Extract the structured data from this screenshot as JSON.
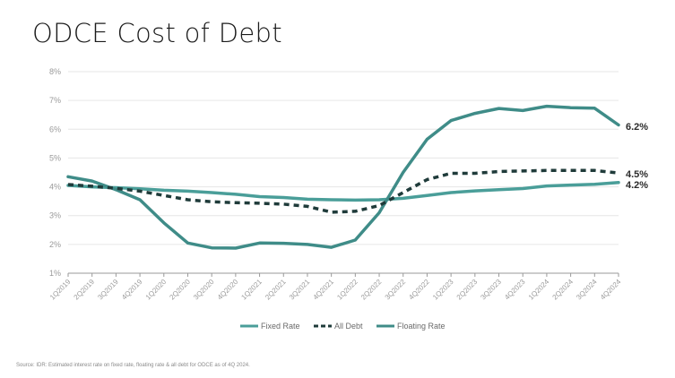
{
  "title": "ODCE Cost of Debt",
  "source": "Source: IDR: Estimated interest rate on fixed rate, floating rate & all debt for ODCE as of 4Q 2024.",
  "colors": {
    "fixed": "#4a9e99",
    "all": "#1f3b3a",
    "floating": "#3f8c88",
    "grid": "#e6e6e6",
    "axis": "#9a9a9a"
  },
  "chart_data": {
    "type": "line",
    "title": "ODCE Cost of Debt",
    "xlabel": "",
    "ylabel": "",
    "ylim": [
      1,
      8
    ],
    "yticks": [
      "8%",
      "7%",
      "6%",
      "5%",
      "4%",
      "3%",
      "2%",
      "1%"
    ],
    "grid": true,
    "legend_position": "bottom",
    "categories": [
      "1Q2019",
      "2Q2019",
      "3Q2019",
      "4Q2019",
      "1Q2020",
      "2Q2020",
      "3Q2020",
      "4Q2020",
      "1Q2021",
      "2Q2021",
      "3Q2021",
      "4Q2021",
      "1Q2022",
      "2Q2022",
      "3Q2022",
      "4Q2022",
      "1Q2023",
      "2Q2023",
      "3Q2023",
      "4Q2023",
      "1Q2024",
      "2Q2024",
      "3Q2024",
      "4Q2024"
    ],
    "series": [
      {
        "name": "Fixed Rate",
        "style": "solid",
        "end_label": "4.2%",
        "values": [
          4.05,
          4.0,
          3.97,
          3.93,
          3.88,
          3.85,
          3.8,
          3.74,
          3.66,
          3.63,
          3.57,
          3.55,
          3.54,
          3.55,
          3.6,
          3.7,
          3.8,
          3.86,
          3.9,
          3.94,
          4.03,
          4.06,
          4.09,
          4.15
        ]
      },
      {
        "name": "All Debt",
        "style": "dashed",
        "end_label": "4.5%",
        "values": [
          4.08,
          4.02,
          3.95,
          3.85,
          3.7,
          3.55,
          3.48,
          3.45,
          3.43,
          3.4,
          3.32,
          3.12,
          3.15,
          3.35,
          3.8,
          4.25,
          4.47,
          4.47,
          4.53,
          4.55,
          4.57,
          4.57,
          4.57,
          4.48
        ]
      },
      {
        "name": "Floating Rate",
        "style": "solid",
        "end_label": "6.2%",
        "values": [
          4.35,
          4.2,
          3.9,
          3.55,
          2.75,
          2.05,
          1.88,
          1.87,
          2.05,
          2.04,
          2.0,
          1.9,
          2.15,
          3.1,
          4.5,
          5.65,
          6.3,
          6.55,
          6.72,
          6.65,
          6.8,
          6.75,
          6.73,
          6.15
        ]
      }
    ]
  }
}
